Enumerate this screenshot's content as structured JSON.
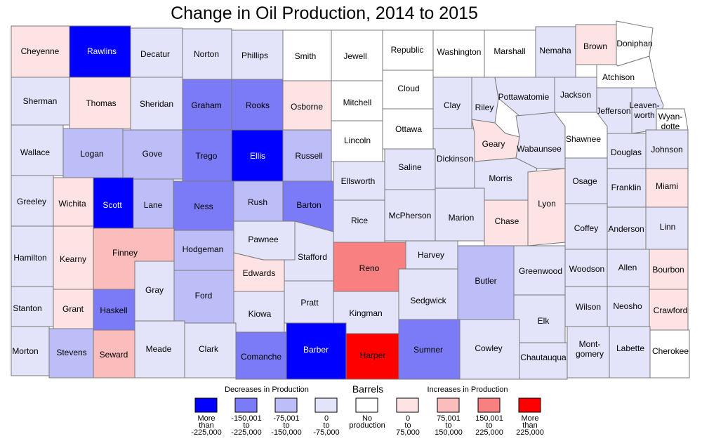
{
  "title": "Change in Oil Production, 2014 to 2015",
  "legend": {
    "decrease_heading": "Decreases in Production",
    "unit_heading": "Barrels",
    "increase_heading": "Increases in Production",
    "bins": [
      {
        "lines": [
          "More",
          "than",
          "-225,000"
        ],
        "color": "#0000ff"
      },
      {
        "lines": [
          "-150,001",
          "to",
          "-225,000"
        ],
        "color": "#7b7bf7"
      },
      {
        "lines": [
          "-75,001",
          "to",
          "-150,000"
        ],
        "color": "#bdbdf7"
      },
      {
        "lines": [
          "0",
          "to",
          "-75,000"
        ],
        "color": "#e3e3fa"
      },
      {
        "lines": [
          "No",
          "production"
        ],
        "color": "#ffffff"
      },
      {
        "lines": [
          "0",
          "to",
          "75,000"
        ],
        "color": "#fde3e3"
      },
      {
        "lines": [
          "75,001",
          "to",
          "150,000"
        ],
        "color": "#fbbcbc"
      },
      {
        "lines": [
          "150,001",
          "to",
          "225,000"
        ],
        "color": "#f88080"
      },
      {
        "lines": [
          "More",
          "than",
          "225,000"
        ],
        "color": "#ff0000"
      }
    ]
  },
  "counties": [
    {
      "name": "Cheyenne",
      "bin": 5
    },
    {
      "name": "Rawlins",
      "bin": 0
    },
    {
      "name": "Decatur",
      "bin": 3
    },
    {
      "name": "Norton",
      "bin": 3
    },
    {
      "name": "Phillips",
      "bin": 3
    },
    {
      "name": "Smith",
      "bin": 4
    },
    {
      "name": "Jewell",
      "bin": 4
    },
    {
      "name": "Republic",
      "bin": 4
    },
    {
      "name": "Washington",
      "bin": 4
    },
    {
      "name": "Marshall",
      "bin": 4
    },
    {
      "name": "Nemaha",
      "bin": 3
    },
    {
      "name": "Brown",
      "bin": 5
    },
    {
      "name": "Doniphan",
      "bin": 4
    },
    {
      "name": "Atchison",
      "bin": 4
    },
    {
      "name": "Sherman",
      "bin": 3
    },
    {
      "name": "Thomas",
      "bin": 5
    },
    {
      "name": "Sheridan",
      "bin": 3
    },
    {
      "name": "Graham",
      "bin": 1
    },
    {
      "name": "Rooks",
      "bin": 1
    },
    {
      "name": "Osborne",
      "bin": 5
    },
    {
      "name": "Mitchell",
      "bin": 4
    },
    {
      "name": "Cloud",
      "bin": 4
    },
    {
      "name": "Clay",
      "bin": 3
    },
    {
      "name": "Riley",
      "bin": 3
    },
    {
      "name": "Pottawatomie",
      "bin": 3
    },
    {
      "name": "Jackson",
      "bin": 3
    },
    {
      "name": "Jefferson",
      "bin": 3
    },
    {
      "name": "Leaven-worth",
      "bin": 3
    },
    {
      "name": "Wyan-dotte",
      "bin": 4
    },
    {
      "name": "Wallace",
      "bin": 3
    },
    {
      "name": "Logan",
      "bin": 2
    },
    {
      "name": "Gove",
      "bin": 2
    },
    {
      "name": "Trego",
      "bin": 1
    },
    {
      "name": "Ellis",
      "bin": 0
    },
    {
      "name": "Russell",
      "bin": 2
    },
    {
      "name": "Lincoln",
      "bin": 4
    },
    {
      "name": "Ottawa",
      "bin": 4
    },
    {
      "name": "Dickinson",
      "bin": 3
    },
    {
      "name": "Geary",
      "bin": 5
    },
    {
      "name": "Wabaunsee",
      "bin": 3
    },
    {
      "name": "Shawnee",
      "bin": 4
    },
    {
      "name": "Douglas",
      "bin": 3
    },
    {
      "name": "Johnson",
      "bin": 3
    },
    {
      "name": "Greeley",
      "bin": 3
    },
    {
      "name": "Wichita",
      "bin": 5
    },
    {
      "name": "Scott",
      "bin": 0
    },
    {
      "name": "Lane",
      "bin": 2
    },
    {
      "name": "Ness",
      "bin": 1
    },
    {
      "name": "Rush",
      "bin": 2
    },
    {
      "name": "Barton",
      "bin": 1
    },
    {
      "name": "Ellsworth",
      "bin": 3
    },
    {
      "name": "Saline",
      "bin": 3
    },
    {
      "name": "Morris",
      "bin": 3
    },
    {
      "name": "Osage",
      "bin": 3
    },
    {
      "name": "Franklin",
      "bin": 3
    },
    {
      "name": "Miami",
      "bin": 5
    },
    {
      "name": "Hamilton",
      "bin": 3
    },
    {
      "name": "Kearny",
      "bin": 5
    },
    {
      "name": "Finney",
      "bin": 6
    },
    {
      "name": "Hodgeman",
      "bin": 2
    },
    {
      "name": "Pawnee",
      "bin": 3
    },
    {
      "name": "Rice",
      "bin": 3
    },
    {
      "name": "McPherson",
      "bin": 3
    },
    {
      "name": "Marion",
      "bin": 3
    },
    {
      "name": "Chase",
      "bin": 5
    },
    {
      "name": "Lyon",
      "bin": 5
    },
    {
      "name": "Coffey",
      "bin": 3
    },
    {
      "name": "Anderson",
      "bin": 3
    },
    {
      "name": "Linn",
      "bin": 3
    },
    {
      "name": "Edwards",
      "bin": 5
    },
    {
      "name": "Stafford",
      "bin": 3
    },
    {
      "name": "Reno",
      "bin": 7
    },
    {
      "name": "Harvey",
      "bin": 3
    },
    {
      "name": "Butler",
      "bin": 2
    },
    {
      "name": "Greenwood",
      "bin": 3
    },
    {
      "name": "Woodson",
      "bin": 3
    },
    {
      "name": "Allen",
      "bin": 3
    },
    {
      "name": "Bourbon",
      "bin": 5
    },
    {
      "name": "Stanton",
      "bin": 3
    },
    {
      "name": "Grant",
      "bin": 5
    },
    {
      "name": "Haskell",
      "bin": 1
    },
    {
      "name": "Gray",
      "bin": 3
    },
    {
      "name": "Ford",
      "bin": 2
    },
    {
      "name": "Kiowa",
      "bin": 3
    },
    {
      "name": "Pratt",
      "bin": 3
    },
    {
      "name": "Kingman",
      "bin": 3
    },
    {
      "name": "Sedgwick",
      "bin": 3
    },
    {
      "name": "Elk",
      "bin": 3
    },
    {
      "name": "Wilson",
      "bin": 3
    },
    {
      "name": "Neosho",
      "bin": 3
    },
    {
      "name": "Crawford",
      "bin": 5
    },
    {
      "name": "Morton",
      "bin": 3
    },
    {
      "name": "Stevens",
      "bin": 2
    },
    {
      "name": "Seward",
      "bin": 6
    },
    {
      "name": "Meade",
      "bin": 3
    },
    {
      "name": "Clark",
      "bin": 3
    },
    {
      "name": "Comanche",
      "bin": 1
    },
    {
      "name": "Barber",
      "bin": 0
    },
    {
      "name": "Harper",
      "bin": 8
    },
    {
      "name": "Sumner",
      "bin": 1
    },
    {
      "name": "Cowley",
      "bin": 3
    },
    {
      "name": "Chautauqua",
      "bin": 3
    },
    {
      "name": "Mont-gomery",
      "bin": 3
    },
    {
      "name": "Labette",
      "bin": 3
    },
    {
      "name": "Cherokee",
      "bin": 4
    }
  ]
}
